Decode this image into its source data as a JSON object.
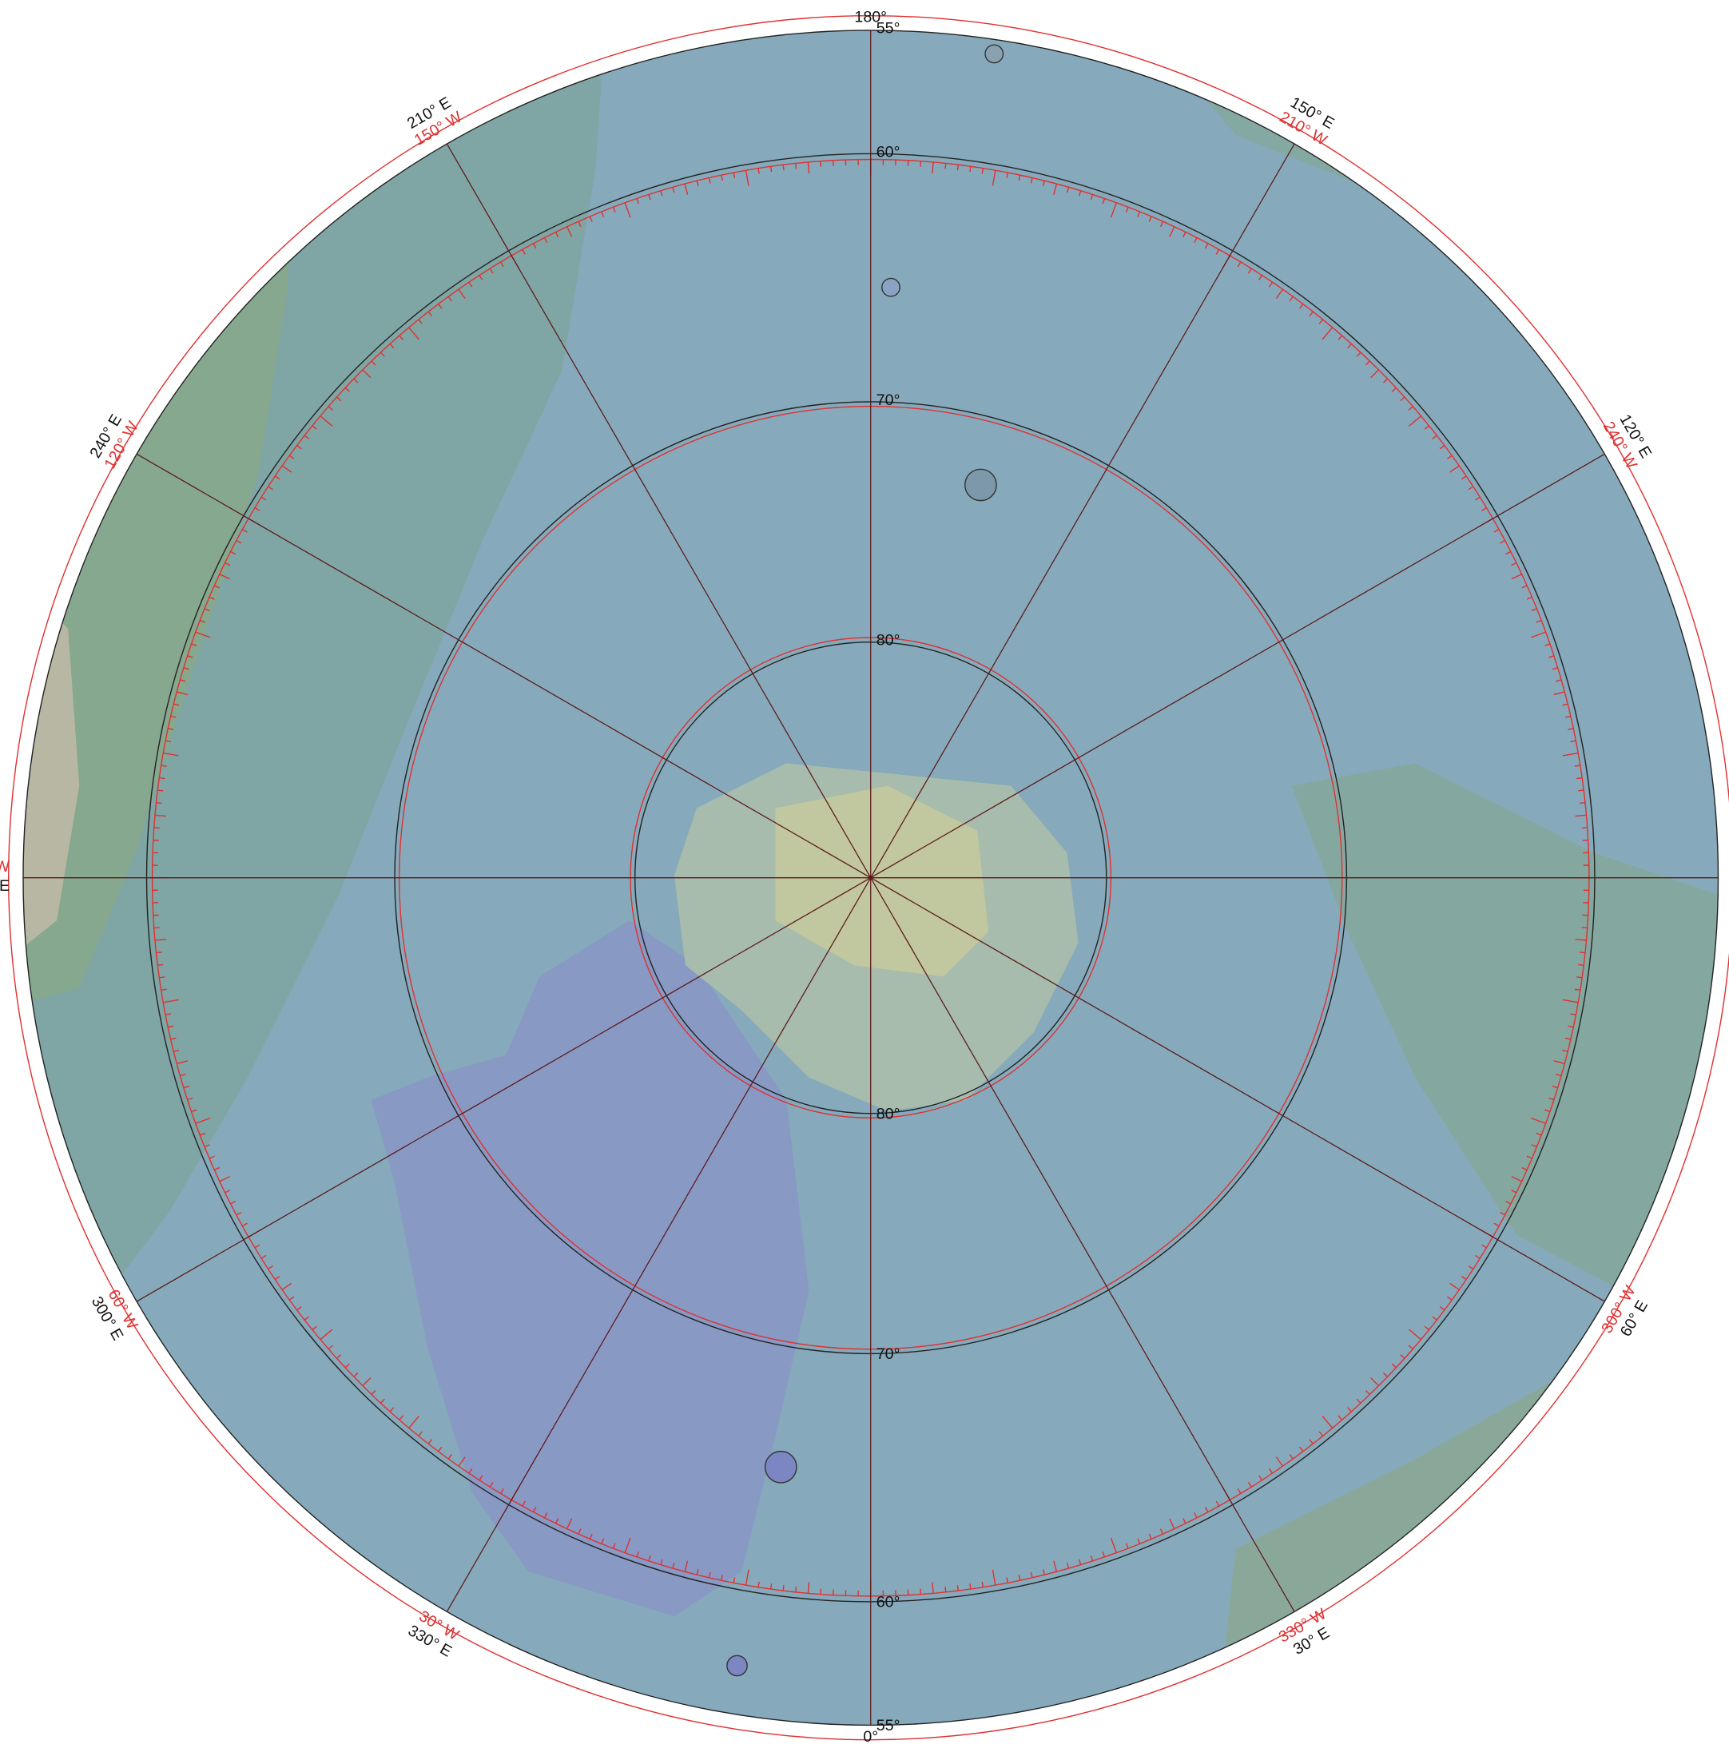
{
  "longitude_labels": [
    {
      "east": "180°"
    },
    {
      "east": "150° E",
      "west": "210° W"
    },
    {
      "east": "120° E",
      "west": "240° W"
    },
    {
      "east": "60° E",
      "west": "300° W"
    },
    {
      "east": "30° E",
      "west": "330° W"
    },
    {
      "east": "0°"
    },
    {
      "east": "330° E",
      "west": "30° W"
    },
    {
      "east": "300° E",
      "west": "60° W"
    },
    {
      "east": "240° E",
      "west": "120° W"
    },
    {
      "east": "210° E",
      "west": "150° W"
    },
    {
      "east": "E",
      "west": "W"
    }
  ],
  "latitude_labels_top": [
    "55°",
    "60°",
    "70°",
    "80°"
  ],
  "latitude_labels_bottom": [
    "80°",
    "70°",
    "60°",
    "55°"
  ]
}
